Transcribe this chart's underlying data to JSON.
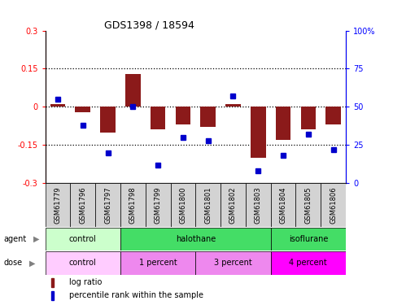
{
  "title": "GDS1398 / 18594",
  "samples": [
    "GSM61779",
    "GSM61796",
    "GSM61797",
    "GSM61798",
    "GSM61799",
    "GSM61800",
    "GSM61801",
    "GSM61802",
    "GSM61803",
    "GSM61804",
    "GSM61805",
    "GSM61806"
  ],
  "log_ratio": [
    0.01,
    -0.02,
    -0.1,
    0.13,
    -0.09,
    -0.07,
    -0.08,
    0.01,
    -0.2,
    -0.13,
    -0.09,
    -0.07
  ],
  "percentile_rank": [
    55,
    38,
    20,
    50,
    12,
    30,
    28,
    57,
    8,
    18,
    32,
    22
  ],
  "bar_color": "#8B1A1A",
  "dot_color": "#0000CC",
  "ylim_left": [
    -0.3,
    0.3
  ],
  "ylim_right": [
    0,
    100
  ],
  "hlines": [
    0.15,
    0.0,
    -0.15
  ],
  "yticks_left": [
    -0.3,
    -0.15,
    0,
    0.15,
    0.3
  ],
  "yticks_right": [
    0,
    25,
    50,
    75,
    100
  ],
  "agent_groups": [
    {
      "label": "control",
      "start": 0,
      "end": 3,
      "color": "#CCFFCC"
    },
    {
      "label": "halothane",
      "start": 3,
      "end": 9,
      "color": "#44DD66"
    },
    {
      "label": "isoflurane",
      "start": 9,
      "end": 12,
      "color": "#44DD66"
    }
  ],
  "dose_groups": [
    {
      "label": "control",
      "start": 0,
      "end": 3,
      "color": "#FFCCFF"
    },
    {
      "label": "1 percent",
      "start": 3,
      "end": 6,
      "color": "#EE88EE"
    },
    {
      "label": "3 percent",
      "start": 6,
      "end": 9,
      "color": "#EE88EE"
    },
    {
      "label": "4 percent",
      "start": 9,
      "end": 12,
      "color": "#FF00FF"
    }
  ],
  "agent_label": "agent",
  "dose_label": "dose",
  "legend_bar_label": "log ratio",
  "legend_dot_label": "percentile rank within the sample",
  "sample_bg_color": "#D3D3D3",
  "background_color": "#ffffff",
  "bar_width": 0.6,
  "dot_size": 4
}
